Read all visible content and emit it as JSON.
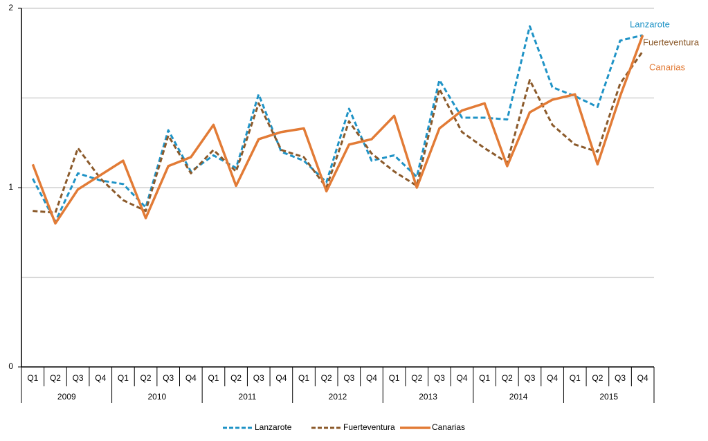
{
  "chart_data": {
    "type": "line",
    "categories": [
      "Q1",
      "Q2",
      "Q3",
      "Q4",
      "Q1",
      "Q2",
      "Q3",
      "Q4",
      "Q1",
      "Q2",
      "Q3",
      "Q4",
      "Q1",
      "Q2",
      "Q3",
      "Q4",
      "Q1",
      "Q2",
      "Q3",
      "Q4",
      "Q1",
      "Q2",
      "Q3",
      "Q4",
      "Q1",
      "Q2",
      "Q3",
      "Q4"
    ],
    "category_groups": [
      "2009",
      "2010",
      "2011",
      "2012",
      "2013",
      "2014",
      "2015"
    ],
    "ylim": [
      0,
      2
    ],
    "yticks": [
      0,
      1,
      2
    ],
    "minor_grid": [
      0.5,
      1.5
    ],
    "grid": true,
    "legend": "bottom",
    "series": [
      {
        "name": "Lanzarote",
        "color": "#1f93c6",
        "style": "dashed",
        "values": [
          1.05,
          0.81,
          1.08,
          1.04,
          1.02,
          0.89,
          1.32,
          1.09,
          1.18,
          1.11,
          1.52,
          1.2,
          1.15,
          1.03,
          1.44,
          1.15,
          1.18,
          1.06,
          1.6,
          1.39,
          1.39,
          1.38,
          1.9,
          1.56,
          1.51,
          1.45,
          1.82,
          1.85
        ]
      },
      {
        "name": "Fuerteventura",
        "color": "#8b5a2b",
        "style": "dashed",
        "values": [
          0.87,
          0.86,
          1.22,
          1.05,
          0.93,
          0.87,
          1.29,
          1.08,
          1.21,
          1.09,
          1.47,
          1.21,
          1.17,
          1.0,
          1.37,
          1.19,
          1.09,
          1.01,
          1.55,
          1.31,
          1.22,
          1.14,
          1.6,
          1.35,
          1.24,
          1.2,
          1.58,
          1.76
        ]
      },
      {
        "name": "Canarias",
        "color": "#e27b36",
        "style": "solid",
        "values": [
          1.13,
          0.8,
          0.99,
          1.07,
          1.15,
          0.83,
          1.12,
          1.17,
          1.35,
          1.01,
          1.27,
          1.31,
          1.33,
          0.98,
          1.24,
          1.27,
          1.4,
          1.0,
          1.33,
          1.43,
          1.47,
          1.12,
          1.42,
          1.49,
          1.52,
          1.13,
          1.51,
          1.85
        ]
      }
    ]
  }
}
